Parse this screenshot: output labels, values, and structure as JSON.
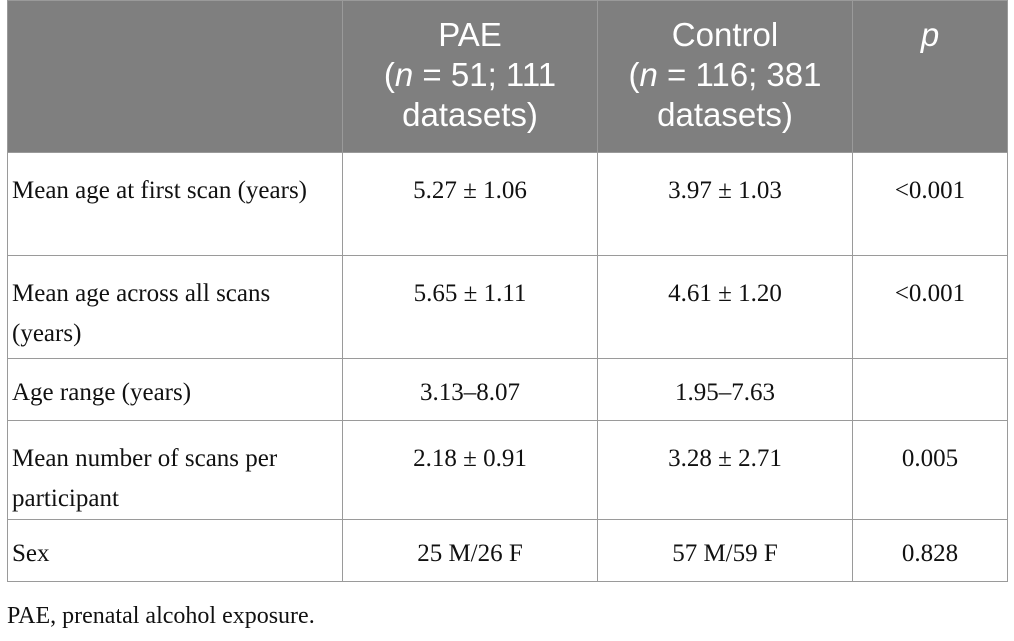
{
  "table": {
    "header": [
      {
        "name": "PAE",
        "open": "(",
        "n": "n",
        "detail": " = 51; 111 datasets)"
      },
      {
        "name": "Control",
        "open": "(",
        "n": "n",
        "detail": " = 116; 381 datasets)"
      },
      {
        "name": "p"
      }
    ],
    "rows": [
      [
        "Mean age at first scan (years)",
        "5.27 ± 1.06",
        "3.97 ± 1.03",
        "<0.001"
      ],
      [
        "Mean age across all scans (years)",
        "5.65 ± 1.11",
        "4.61 ± 1.20",
        "<0.001"
      ],
      [
        "Age range (years)",
        "3.13–8.07",
        "1.95–7.63"
      ],
      [
        "Mean number of scans per participant",
        "2.18 ± 0.91",
        "3.28 ± 2.71",
        "0.005"
      ],
      [
        "Sex",
        "25 M/26 F",
        "57 M/59 F",
        "0.828"
      ]
    ],
    "footnote": "PAE, prenatal alcohol exposure."
  }
}
